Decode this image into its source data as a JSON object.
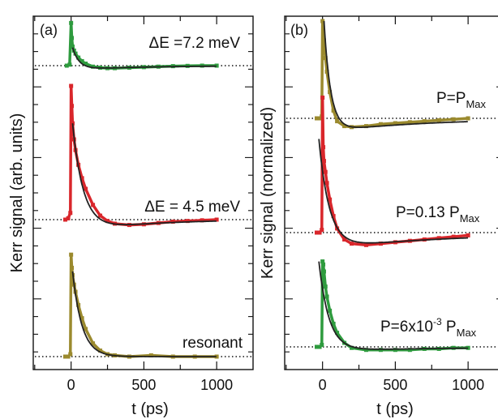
{
  "chart_data": [
    {
      "type": "line",
      "panel_label": "(a)",
      "xlabel": "t (ps)",
      "ylabel": "Kerr signal (arb. units)",
      "xlim": [
        -260,
        1250
      ],
      "xticks": [
        0,
        500,
        1000
      ],
      "y_tick_labels": "none",
      "grid": false,
      "legend": "none",
      "series": [
        {
          "annotation": "ΔE =7.2 meV",
          "color": "#2e9b3e",
          "fit_color": "#222222",
          "baseline": "dotted",
          "x": [
            -30,
            -10,
            0,
            5,
            10,
            20,
            30,
            50,
            75,
            100,
            150,
            200,
            250,
            300,
            400,
            500,
            600,
            700,
            800,
            900,
            1000
          ],
          "y": [
            0.0,
            0.02,
            0.85,
            0.55,
            0.38,
            0.3,
            0.24,
            0.16,
            0.09,
            0.04,
            -0.02,
            -0.04,
            -0.05,
            -0.05,
            -0.04,
            -0.03,
            -0.02,
            -0.01,
            -0.005,
            0.0,
            0.0
          ],
          "fit": {
            "t0": 10,
            "A": 0.36,
            "tau1": 45,
            "B": -0.08,
            "tau2": 500
          }
        },
        {
          "annotation": "ΔE = 4.5 meV",
          "color": "#d9262b",
          "fit_color": "#222222",
          "baseline": "dotted",
          "x": [
            -40,
            -20,
            -5,
            0,
            5,
            10,
            20,
            30,
            50,
            75,
            100,
            150,
            200,
            250,
            300,
            400,
            500,
            600,
            700,
            800,
            900,
            1000
          ],
          "y": [
            0.0,
            0.01,
            0.05,
            1.0,
            0.85,
            0.72,
            0.6,
            0.52,
            0.41,
            0.31,
            0.23,
            0.11,
            0.03,
            -0.01,
            -0.03,
            -0.04,
            -0.035,
            -0.025,
            -0.015,
            -0.01,
            -0.005,
            0.0
          ],
          "fit": {
            "t0": 10,
            "A": 0.72,
            "tau1": 80,
            "B": -0.1,
            "tau2": 450
          }
        },
        {
          "annotation": "resonant",
          "color": "#9b8a2e",
          "fit_color": "#222222",
          "baseline": "dotted",
          "x": [
            -40,
            -20,
            -5,
            0,
            5,
            10,
            20,
            30,
            50,
            75,
            100,
            150,
            200,
            250,
            300,
            400,
            550,
            700,
            850,
            1000
          ],
          "y": [
            0.0,
            0.0,
            0.02,
            0.85,
            0.74,
            0.68,
            0.6,
            0.54,
            0.43,
            0.32,
            0.23,
            0.11,
            0.05,
            0.02,
            0.01,
            0.0,
            0.01,
            0.0,
            0.0,
            0.0
          ],
          "fit": {
            "t0": 10,
            "A": 0.71,
            "tau1": 65,
            "B": 0,
            "tau2": 500
          }
        }
      ]
    },
    {
      "type": "line",
      "panel_label": "(b)",
      "xlabel": "t (ps)",
      "ylabel": "Kerr signal (normalized)",
      "xlim": [
        -260,
        1250
      ],
      "xticks": [
        0,
        500,
        1000
      ],
      "y_tick_labels": "none",
      "grid": false,
      "legend": "none",
      "series": [
        {
          "annotation": {
            "main": "P=P",
            "sub": "Max"
          },
          "color": "#9b8a2e",
          "fit_color": "#222222",
          "baseline": "dotted",
          "x": [
            -40,
            -20,
            -5,
            0,
            5,
            10,
            20,
            30,
            50,
            75,
            100,
            150,
            200,
            300,
            400,
            500,
            600,
            700,
            800,
            900,
            1000
          ],
          "y": [
            0.0,
            0.0,
            0.02,
            1.0,
            0.9,
            0.8,
            0.62,
            0.48,
            0.27,
            0.08,
            -0.03,
            -0.08,
            -0.09,
            -0.08,
            -0.06,
            -0.05,
            -0.04,
            -0.03,
            -0.02,
            -0.01,
            0.0
          ],
          "fit": {
            "t0": 10,
            "A": 1.0,
            "tau1": 45,
            "B": -0.14,
            "tau2": 700
          }
        },
        {
          "annotation": {
            "main": "P=0.13 P",
            "sub": "Max"
          },
          "color": "#d9262b",
          "fit_color": "#222222",
          "baseline": "dotted",
          "x": [
            -40,
            -20,
            -5,
            0,
            5,
            10,
            20,
            30,
            50,
            75,
            100,
            150,
            200,
            300,
            400,
            500,
            600,
            700,
            800,
            900,
            1000
          ],
          "y": [
            0.0,
            0.0,
            0.02,
            0.98,
            0.62,
            0.52,
            0.44,
            0.36,
            0.24,
            0.12,
            0.03,
            -0.05,
            -0.08,
            -0.09,
            -0.08,
            -0.07,
            -0.06,
            -0.05,
            -0.04,
            -0.03,
            -0.02
          ],
          "fit": {
            "t0": -25,
            "A": 0.68,
            "tau1": 75,
            "B": -0.12,
            "tau2": 900
          }
        },
        {
          "annotation": {
            "main": "P=6x10",
            "sup": "-3",
            "rest": " P",
            "sub": "Max"
          },
          "color": "#2e9b3e",
          "fit_color": "#222222",
          "baseline": "dotted",
          "x": [
            -40,
            -20,
            -5,
            0,
            5,
            10,
            20,
            30,
            50,
            75,
            100,
            150,
            200,
            300,
            400,
            500,
            600,
            700,
            800,
            900,
            1000
          ],
          "y": [
            0.0,
            0.0,
            0.02,
            0.85,
            0.82,
            0.75,
            0.6,
            0.5,
            0.36,
            0.23,
            0.14,
            0.04,
            -0.01,
            -0.03,
            -0.03,
            -0.03,
            -0.03,
            -0.02,
            -0.02,
            -0.01,
            -0.01
          ],
          "fit": {
            "t0": -25,
            "A": 0.85,
            "tau1": 70,
            "B": -0.04,
            "tau2": 900
          }
        }
      ]
    }
  ]
}
